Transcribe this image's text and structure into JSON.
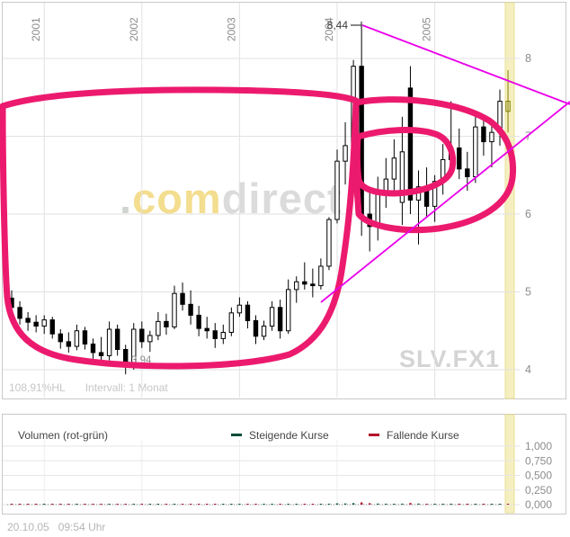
{
  "colors": {
    "annotation_pink": "#ec1a6e",
    "trendline_magenta": "#ea00ea",
    "current_candle_olive": "#7e7e00",
    "band_yellow": "#f5efc0",
    "band_yellow_edge": "#e9df96",
    "up_volume_green": "#0a5c3c",
    "down_volume_red": "#b01228",
    "grid_gray": "#e2e2e2",
    "axis_label_gray": "#8c8c8c"
  },
  "main_panel": {
    "status_percent": "108,91%HL",
    "interval_label": "Intervall: 1 Monat",
    "symbol": "SLV.FX1",
    "watermark": {
      "prefix": ".",
      "yellow": "com",
      "gray": "direct"
    }
  },
  "volume_panel": {
    "title": "Volumen (rot-grün)",
    "legend": [
      {
        "label": "Steigende Kurse",
        "color": "#0f4d38"
      },
      {
        "label": "Fallende Kurse",
        "color": "#b5122e"
      }
    ]
  },
  "footer": {
    "timestamp": "20.10.05   09:54 Uhr"
  },
  "chart_data": {
    "type": "candlestick",
    "symbol": "SLV.FX1",
    "interval": "1 Monat",
    "x_axis": {
      "tick_labels": [
        "2001",
        "2002",
        "2003",
        "2004",
        "2005"
      ]
    },
    "price_axis": {
      "tick_labels": [
        "8",
        "7",
        "6",
        "5",
        "4"
      ],
      "tick_values": [
        8,
        7,
        6,
        5,
        4
      ],
      "range": [
        3.7,
        8.7
      ]
    },
    "volume_axis": {
      "tick_labels": [
        "1,000",
        "0,750",
        "0,500",
        "0,250",
        "0,000"
      ],
      "tick_values": [
        1.0,
        0.75,
        0.5,
        0.25,
        0.0
      ]
    },
    "annotations": {
      "high_label": "8,44",
      "low_label": "3,94",
      "shapes": "hand-drawn pink cup-and-handle outline, two converging magenta trendlines"
    },
    "candles": [
      [
        "2000-09",
        4.92,
        5.02,
        4.72,
        4.8,
        0.01
      ],
      [
        "2000-10",
        4.8,
        4.88,
        4.58,
        4.66,
        0.009
      ],
      [
        "2000-11",
        4.66,
        4.74,
        4.5,
        4.61,
        0.008
      ],
      [
        "2000-12",
        4.61,
        4.7,
        4.48,
        4.56,
        0.007
      ],
      [
        "2001-01",
        4.56,
        4.7,
        4.46,
        4.64,
        0.009
      ],
      [
        "2001-02",
        4.64,
        4.68,
        4.4,
        4.46,
        0.008
      ],
      [
        "2001-03",
        4.46,
        4.52,
        4.27,
        4.36,
        0.008
      ],
      [
        "2001-04",
        4.36,
        4.48,
        4.22,
        4.3,
        0.007
      ],
      [
        "2001-05",
        4.3,
        4.58,
        4.25,
        4.5,
        0.009
      ],
      [
        "2001-06",
        4.5,
        4.55,
        4.26,
        4.33,
        0.008
      ],
      [
        "2001-07",
        4.33,
        4.4,
        4.14,
        4.22,
        0.007
      ],
      [
        "2001-08",
        4.22,
        4.42,
        4.12,
        4.18,
        0.007
      ],
      [
        "2001-09",
        4.18,
        4.62,
        4.12,
        4.52,
        0.011
      ],
      [
        "2001-10",
        4.52,
        4.58,
        4.18,
        4.26,
        0.009
      ],
      [
        "2001-11",
        4.26,
        4.32,
        3.94,
        4.04,
        0.01
      ],
      [
        "2001-12",
        4.04,
        4.6,
        4.0,
        4.52,
        0.011
      ],
      [
        "2002-01",
        4.52,
        4.62,
        4.28,
        4.36,
        0.009
      ],
      [
        "2002-02",
        4.36,
        4.5,
        4.23,
        4.44,
        0.008
      ],
      [
        "2002-03",
        4.44,
        4.74,
        4.38,
        4.62,
        0.01
      ],
      [
        "2002-04",
        4.62,
        4.72,
        4.45,
        4.55,
        0.008
      ],
      [
        "2002-05",
        4.55,
        5.08,
        4.52,
        4.98,
        0.013
      ],
      [
        "2002-06",
        4.98,
        5.12,
        4.76,
        4.84,
        0.011
      ],
      [
        "2002-07",
        4.84,
        5.02,
        4.58,
        4.7,
        0.01
      ],
      [
        "2002-08",
        4.7,
        4.82,
        4.43,
        4.53,
        0.008
      ],
      [
        "2002-09",
        4.53,
        4.68,
        4.4,
        4.5,
        0.008
      ],
      [
        "2002-10",
        4.5,
        4.6,
        4.28,
        4.4,
        0.008
      ],
      [
        "2002-11",
        4.4,
        4.58,
        4.33,
        4.48,
        0.007
      ],
      [
        "2002-12",
        4.48,
        4.8,
        4.43,
        4.73,
        0.009
      ],
      [
        "2003-01",
        4.73,
        4.93,
        4.68,
        4.83,
        0.011
      ],
      [
        "2003-02",
        4.83,
        4.88,
        4.53,
        4.63,
        0.009
      ],
      [
        "2003-03",
        4.63,
        4.7,
        4.33,
        4.43,
        0.009
      ],
      [
        "2003-04",
        4.43,
        4.63,
        4.38,
        4.56,
        0.008
      ],
      [
        "2003-05",
        4.56,
        4.88,
        4.5,
        4.8,
        0.01
      ],
      [
        "2003-06",
        4.8,
        4.9,
        4.4,
        4.5,
        0.009
      ],
      [
        "2003-07",
        4.5,
        5.16,
        4.46,
        5.03,
        0.013
      ],
      [
        "2003-08",
        5.03,
        5.2,
        4.86,
        5.13,
        0.012
      ],
      [
        "2003-09",
        5.13,
        5.38,
        5.03,
        5.1,
        0.012
      ],
      [
        "2003-10",
        5.1,
        5.3,
        4.93,
        5.08,
        0.011
      ],
      [
        "2003-11",
        5.08,
        5.43,
        5.03,
        5.33,
        0.012
      ],
      [
        "2003-12",
        5.33,
        5.96,
        5.28,
        5.93,
        0.016
      ],
      [
        "2004-01",
        5.93,
        6.83,
        5.88,
        6.68,
        0.022
      ],
      [
        "2004-02",
        6.68,
        7.18,
        6.38,
        6.88,
        0.02
      ],
      [
        "2004-03",
        6.88,
        7.98,
        6.83,
        7.9,
        0.026
      ],
      [
        "2004-04",
        7.9,
        8.44,
        5.72,
        6.0,
        0.038
      ],
      [
        "2004-05",
        6.0,
        6.28,
        5.52,
        5.84,
        0.024
      ],
      [
        "2004-06",
        5.84,
        6.48,
        5.66,
        6.3,
        0.018
      ],
      [
        "2004-07",
        6.3,
        6.72,
        6.08,
        6.45,
        0.016
      ],
      [
        "2004-08",
        6.45,
        6.96,
        6.28,
        6.72,
        0.015
      ],
      [
        "2004-09",
        6.15,
        7.25,
        5.86,
        6.8,
        0.017
      ],
      [
        "2004-10",
        7.62,
        7.9,
        6.0,
        6.18,
        0.027
      ],
      [
        "2004-11",
        6.18,
        6.56,
        5.61,
        6.35,
        0.018
      ],
      [
        "2004-12",
        6.35,
        6.6,
        5.95,
        6.1,
        0.014
      ],
      [
        "2005-01",
        6.1,
        6.5,
        5.9,
        6.42,
        0.013
      ],
      [
        "2005-02",
        6.42,
        6.9,
        6.25,
        6.7,
        0.014
      ],
      [
        "2005-03",
        6.7,
        7.45,
        6.6,
        6.85,
        0.016
      ],
      [
        "2005-04",
        6.85,
        7.1,
        6.45,
        6.58,
        0.012
      ],
      [
        "2005-05",
        6.58,
        6.8,
        6.3,
        6.48,
        0.011
      ],
      [
        "2005-06",
        6.48,
        7.3,
        6.4,
        7.12,
        0.015
      ],
      [
        "2005-07",
        7.12,
        7.25,
        6.75,
        6.93,
        0.012
      ],
      [
        "2005-08",
        6.93,
        7.18,
        6.6,
        7.05,
        0.012
      ],
      [
        "2005-09",
        7.05,
        7.6,
        6.88,
        7.45,
        0.015
      ],
      [
        "2005-10",
        7.45,
        7.85,
        7.05,
        7.32,
        0.013
      ]
    ]
  }
}
